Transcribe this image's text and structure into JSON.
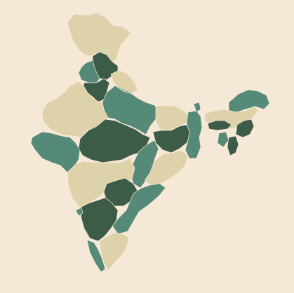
{
  "map": {
    "background": "#f6e8d6",
    "border_color": "#f6e8d6",
    "palette": {
      "tan": "#ddd2a9",
      "teal": "#568a78",
      "dark": "#3c5c47"
    },
    "regions": [
      {
        "name": "jammu-kashmir",
        "tone": "tan"
      },
      {
        "name": "himachal-pradesh",
        "tone": "dark"
      },
      {
        "name": "punjab",
        "tone": "teal"
      },
      {
        "name": "uttarakhand",
        "tone": "teal"
      },
      {
        "name": "haryana",
        "tone": "dark"
      },
      {
        "name": "rajasthan",
        "tone": "tan"
      },
      {
        "name": "uttar-pradesh",
        "tone": "teal"
      },
      {
        "name": "uttar-pradesh-north",
        "tone": "tan"
      },
      {
        "name": "gujarat",
        "tone": "teal"
      },
      {
        "name": "madhya-pradesh",
        "tone": "dark"
      },
      {
        "name": "bihar",
        "tone": "tan"
      },
      {
        "name": "jharkhand",
        "tone": "dark"
      },
      {
        "name": "west-bengal",
        "tone": "teal"
      },
      {
        "name": "chhattisgarh",
        "tone": "teal"
      },
      {
        "name": "odisha",
        "tone": "tan"
      },
      {
        "name": "maharashtra",
        "tone": "tan"
      },
      {
        "name": "telangana",
        "tone": "dark"
      },
      {
        "name": "andhra-pradesh",
        "tone": "teal"
      },
      {
        "name": "karnataka",
        "tone": "dark"
      },
      {
        "name": "goa",
        "tone": "teal"
      },
      {
        "name": "kerala",
        "tone": "teal"
      },
      {
        "name": "tamil-nadu",
        "tone": "tan"
      },
      {
        "name": "sikkim",
        "tone": "teal"
      },
      {
        "name": "arunachal-pradesh",
        "tone": "teal"
      },
      {
        "name": "assam",
        "tone": "tan"
      },
      {
        "name": "meghalaya",
        "tone": "dark"
      },
      {
        "name": "nagaland",
        "tone": "dark"
      },
      {
        "name": "tripura",
        "tone": "teal"
      },
      {
        "name": "mizoram",
        "tone": "dark"
      }
    ]
  }
}
